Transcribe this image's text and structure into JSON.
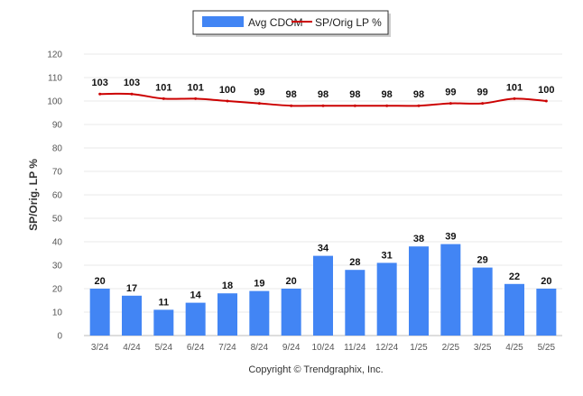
{
  "chart_data": {
    "type": "bar",
    "categories": [
      "3/24",
      "4/24",
      "5/24",
      "6/24",
      "7/24",
      "8/24",
      "9/24",
      "10/24",
      "11/24",
      "12/24",
      "1/25",
      "2/25",
      "3/25",
      "4/25",
      "5/25"
    ],
    "series": [
      {
        "name": "Avg CDOM",
        "type": "bar",
        "color": "#4285f4",
        "values": [
          20,
          17,
          11,
          14,
          18,
          19,
          20,
          34,
          28,
          31,
          38,
          39,
          29,
          22,
          20
        ]
      },
      {
        "name": "SP/Orig LP %",
        "type": "line",
        "color": "#cc0000",
        "values": [
          103,
          103,
          101,
          101,
          100,
          99,
          98,
          98,
          98,
          98,
          98,
          99,
          99,
          101,
          100
        ]
      }
    ],
    "title": "",
    "xlabel": "",
    "ylabel": "SP/Orig. LP %",
    "ylim": [
      0,
      120
    ],
    "yticks": [
      0,
      10,
      20,
      30,
      40,
      50,
      60,
      70,
      80,
      90,
      100,
      110,
      120
    ],
    "grid": true,
    "legend_position": "top-center"
  },
  "footer": {
    "copyright": "Copyright © Trendgraphix, Inc."
  }
}
